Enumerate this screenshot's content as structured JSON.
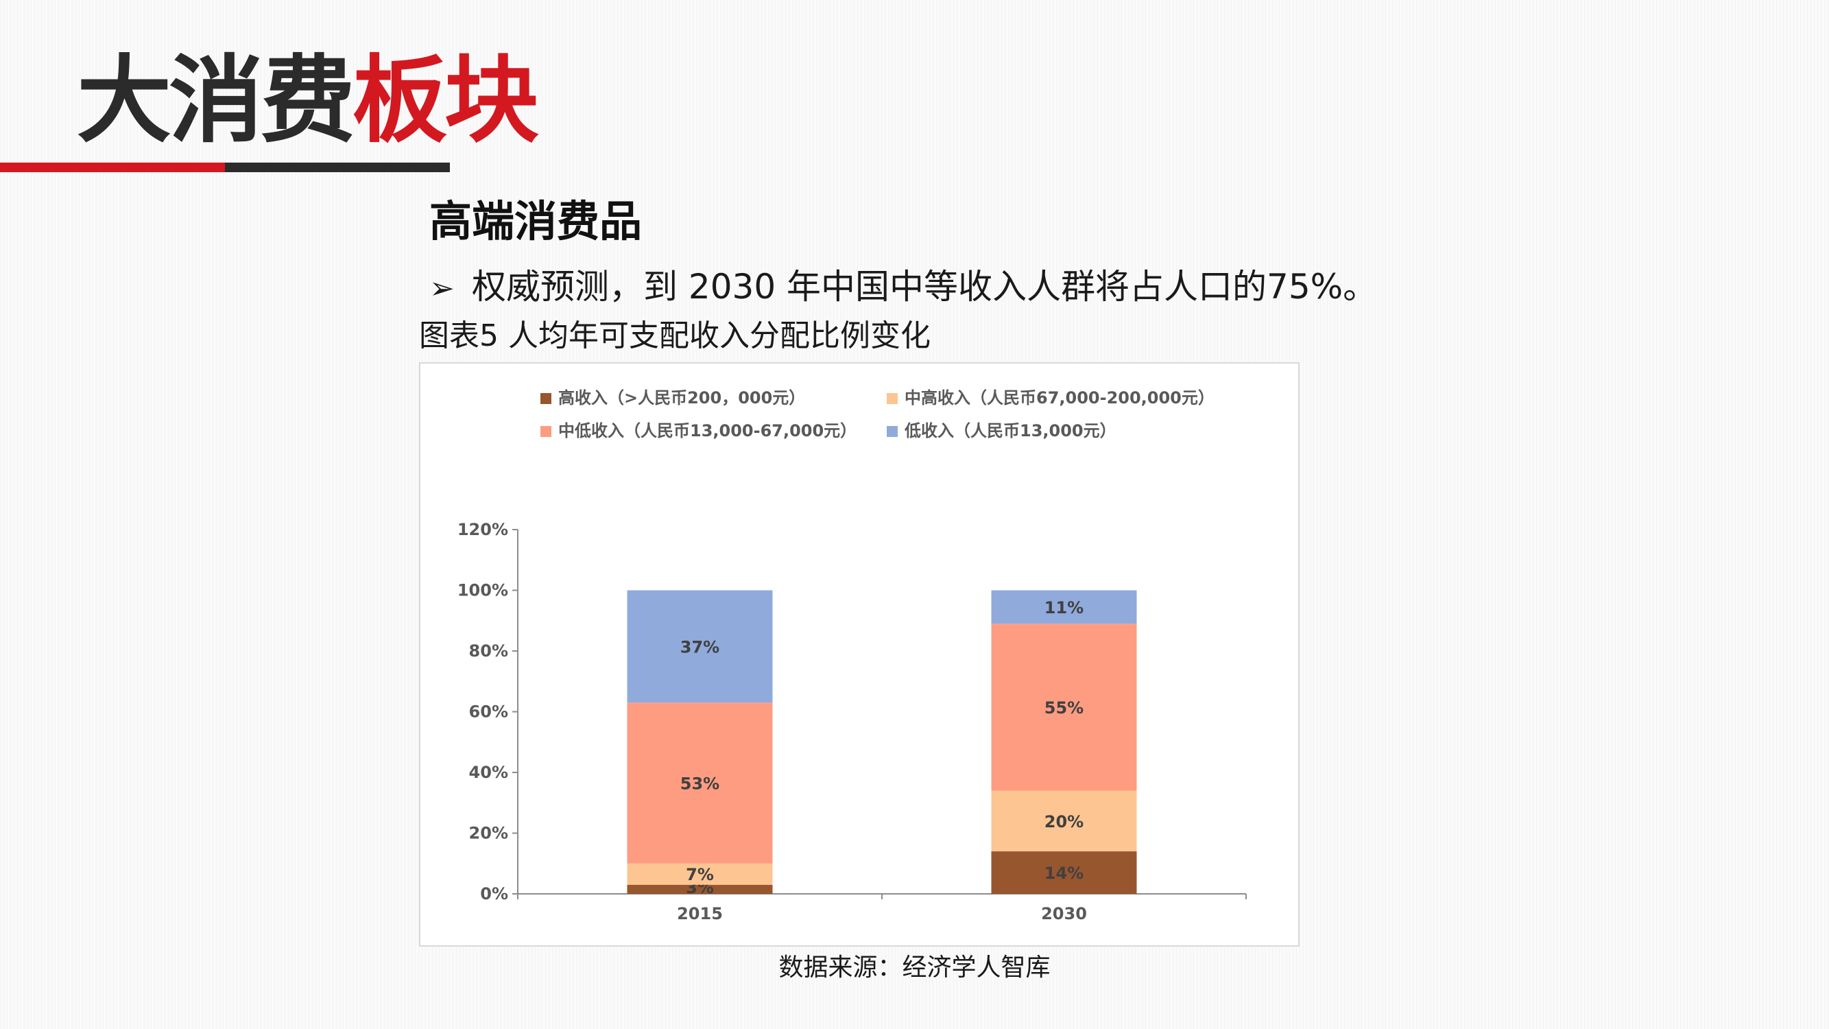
{
  "header": {
    "title_dark": "大消费",
    "title_red": "板块",
    "colors": {
      "red": "#d41820",
      "dark": "#2b2b2b"
    }
  },
  "section": {
    "subtitle": "高端消费品",
    "bullet_icon": "arrowhead-bullet-icon",
    "bullet_text": "权威预测，到 2030 年中国中等收入人群将占人口的75%。",
    "caption": "图表5 人均年可支配收入分配比例变化"
  },
  "source": "数据来源：经济学人智库",
  "chart_data": {
    "type": "bar",
    "stacked": true,
    "categories": [
      "2015",
      "2030"
    ],
    "series": [
      {
        "name": "高收入（>人民币200，000元）",
        "values": [
          3,
          14
        ],
        "labels": [
          "3%",
          "14%"
        ],
        "color": "#97562e"
      },
      {
        "name": "中高收入（人民币67,000-200,000元）",
        "values": [
          7,
          20
        ],
        "labels": [
          "7%",
          "20%"
        ],
        "color": "#fcc592"
      },
      {
        "name": "中低收入（人民币13,000-67,000元）",
        "values": [
          53,
          55
        ],
        "labels": [
          "53%",
          "55%"
        ],
        "color": "#fe9c82"
      },
      {
        "name": "低收入（人民币13,000元）",
        "values": [
          37,
          11
        ],
        "labels": [
          "37%",
          "11%"
        ],
        "color": "#90aadc"
      }
    ],
    "legend_order": [
      0,
      1,
      2,
      3
    ],
    "legend_position": "top",
    "yticks": [
      "0%",
      "20%",
      "40%",
      "60%",
      "80%",
      "100%",
      "120%"
    ],
    "ylim": [
      0,
      120
    ],
    "grid": false,
    "title": "",
    "xlabel": "",
    "ylabel": ""
  }
}
